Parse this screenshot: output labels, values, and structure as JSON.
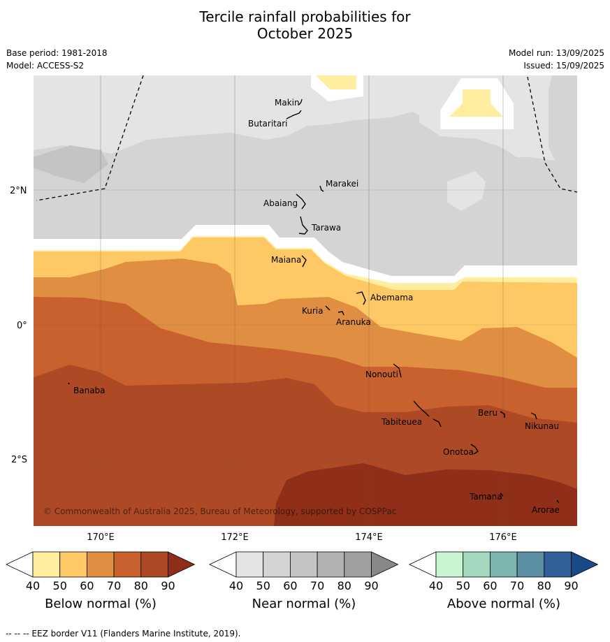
{
  "title_line1": "Tercile rainfall probabilities for",
  "title_line2": "October 2025",
  "base_period": "Base period: 1981-2018",
  "model": "Model: ACCESS-S2",
  "model_run": "Model run: 13/09/2025",
  "issued": "Issued: 15/09/2025",
  "copyright": "© Commonwealth of Australia 2025, Bureau of Meteorology, supported by COSPPac",
  "lat_labels": [
    "2°N",
    "0°",
    "2°S"
  ],
  "lon_labels": [
    "170°E",
    "172°E",
    "174°E",
    "176°E"
  ],
  "islands": [
    "Makin",
    "Butaritari",
    "Marakei",
    "Abaiang",
    "Tarawa",
    "Maiana",
    "Abemama",
    "Kuria",
    "Aranuka",
    "Nonouti",
    "Banaba",
    "Beru",
    "Tabiteuea",
    "Nikunau",
    "Onotoa",
    "Tamana",
    "Arorae"
  ],
  "colorbars": [
    {
      "label": "Below normal (%)",
      "ticks": [
        "40",
        "50",
        "60",
        "70",
        "80",
        "90"
      ],
      "colors": [
        "#ffffff",
        "#ffeda0",
        "#fec965",
        "#e08f42",
        "#c9612f",
        "#ae4925",
        "#8f2f1a"
      ]
    },
    {
      "label": "Near normal (%)",
      "ticks": [
        "40",
        "50",
        "60",
        "70",
        "80",
        "90"
      ],
      "colors": [
        "#ffffff",
        "#e4e4e4",
        "#d4d4d4",
        "#c4c4c4",
        "#b2b2b2",
        "#a0a0a0",
        "#888888"
      ]
    },
    {
      "label": "Above normal (%)",
      "ticks": [
        "40",
        "50",
        "60",
        "70",
        "80",
        "90"
      ],
      "colors": [
        "#ffffff",
        "#c9f5d0",
        "#a3d8bf",
        "#7cb5b0",
        "#5b8fa3",
        "#325f9a",
        "#184a88"
      ]
    }
  ],
  "footer": "--  --  -- EEZ border V11 (Flanders Marine Institute, 2019)."
}
